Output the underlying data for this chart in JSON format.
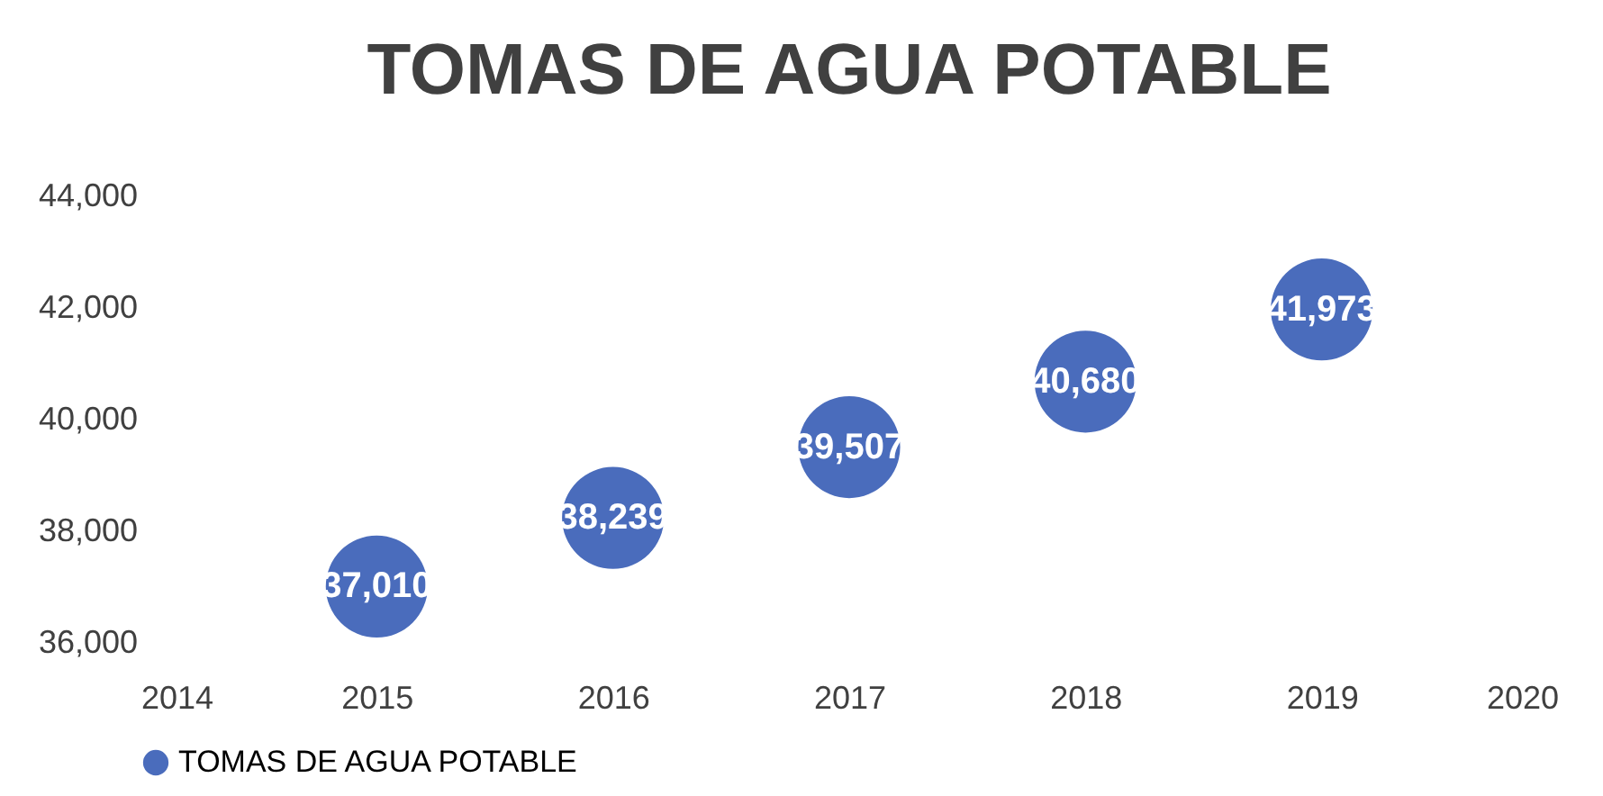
{
  "chart_data": {
    "type": "scatter",
    "title": "TOMAS DE AGUA POTABLE",
    "x": [
      2015,
      2016,
      2017,
      2018,
      2019
    ],
    "series": [
      {
        "name": "TOMAS DE AGUA POTABLE",
        "color": "#4a6cbc",
        "values": [
          37010,
          38239,
          39507,
          40680,
          41973
        ],
        "value_labels": [
          "37,010",
          "38,239",
          "39,507",
          "40,680",
          "41,973"
        ]
      }
    ],
    "xlim": [
      2014,
      2020
    ],
    "xticks": [
      2014,
      2015,
      2016,
      2017,
      2018,
      2019,
      2020
    ],
    "ylim": [
      36000,
      44000
    ],
    "yticks": [
      {
        "value": 36000,
        "label": "36,000"
      },
      {
        "value": 38000,
        "label": "38,000"
      },
      {
        "value": 40000,
        "label": "40,000"
      },
      {
        "value": 42000,
        "label": "42,000"
      },
      {
        "value": 44000,
        "label": "44,000"
      }
    ],
    "marker": "circle",
    "legend": "bottom",
    "grid": false
  }
}
